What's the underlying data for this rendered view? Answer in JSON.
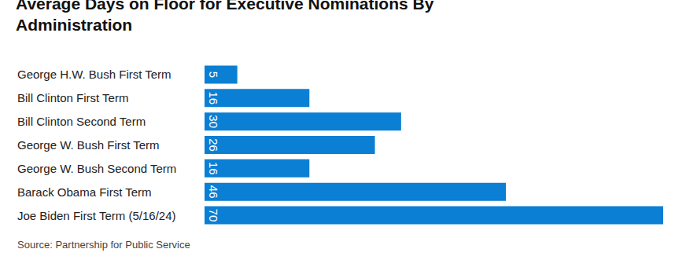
{
  "chart_data": {
    "type": "bar",
    "title": "Average Days on Floor for Executive Nominations By Administration",
    "categories": [
      "George H.W. Bush First Term",
      "Bill Clinton First Term",
      "Bill Clinton Second Term",
      "George W. Bush First Term",
      "George W. Bush Second Term",
      "Barack Obama First Term",
      "Joe Biden First Term (5/16/24)"
    ],
    "values": [
      5,
      16,
      30,
      26,
      16,
      46,
      70
    ],
    "color": "#0a7fd4",
    "orientation": "horizontal",
    "data_labels": true,
    "tick_labels": "y",
    "grid": false,
    "xlim": [
      0,
      70
    ],
    "annotations": [
      "Source: Partnership for Public Service"
    ]
  }
}
